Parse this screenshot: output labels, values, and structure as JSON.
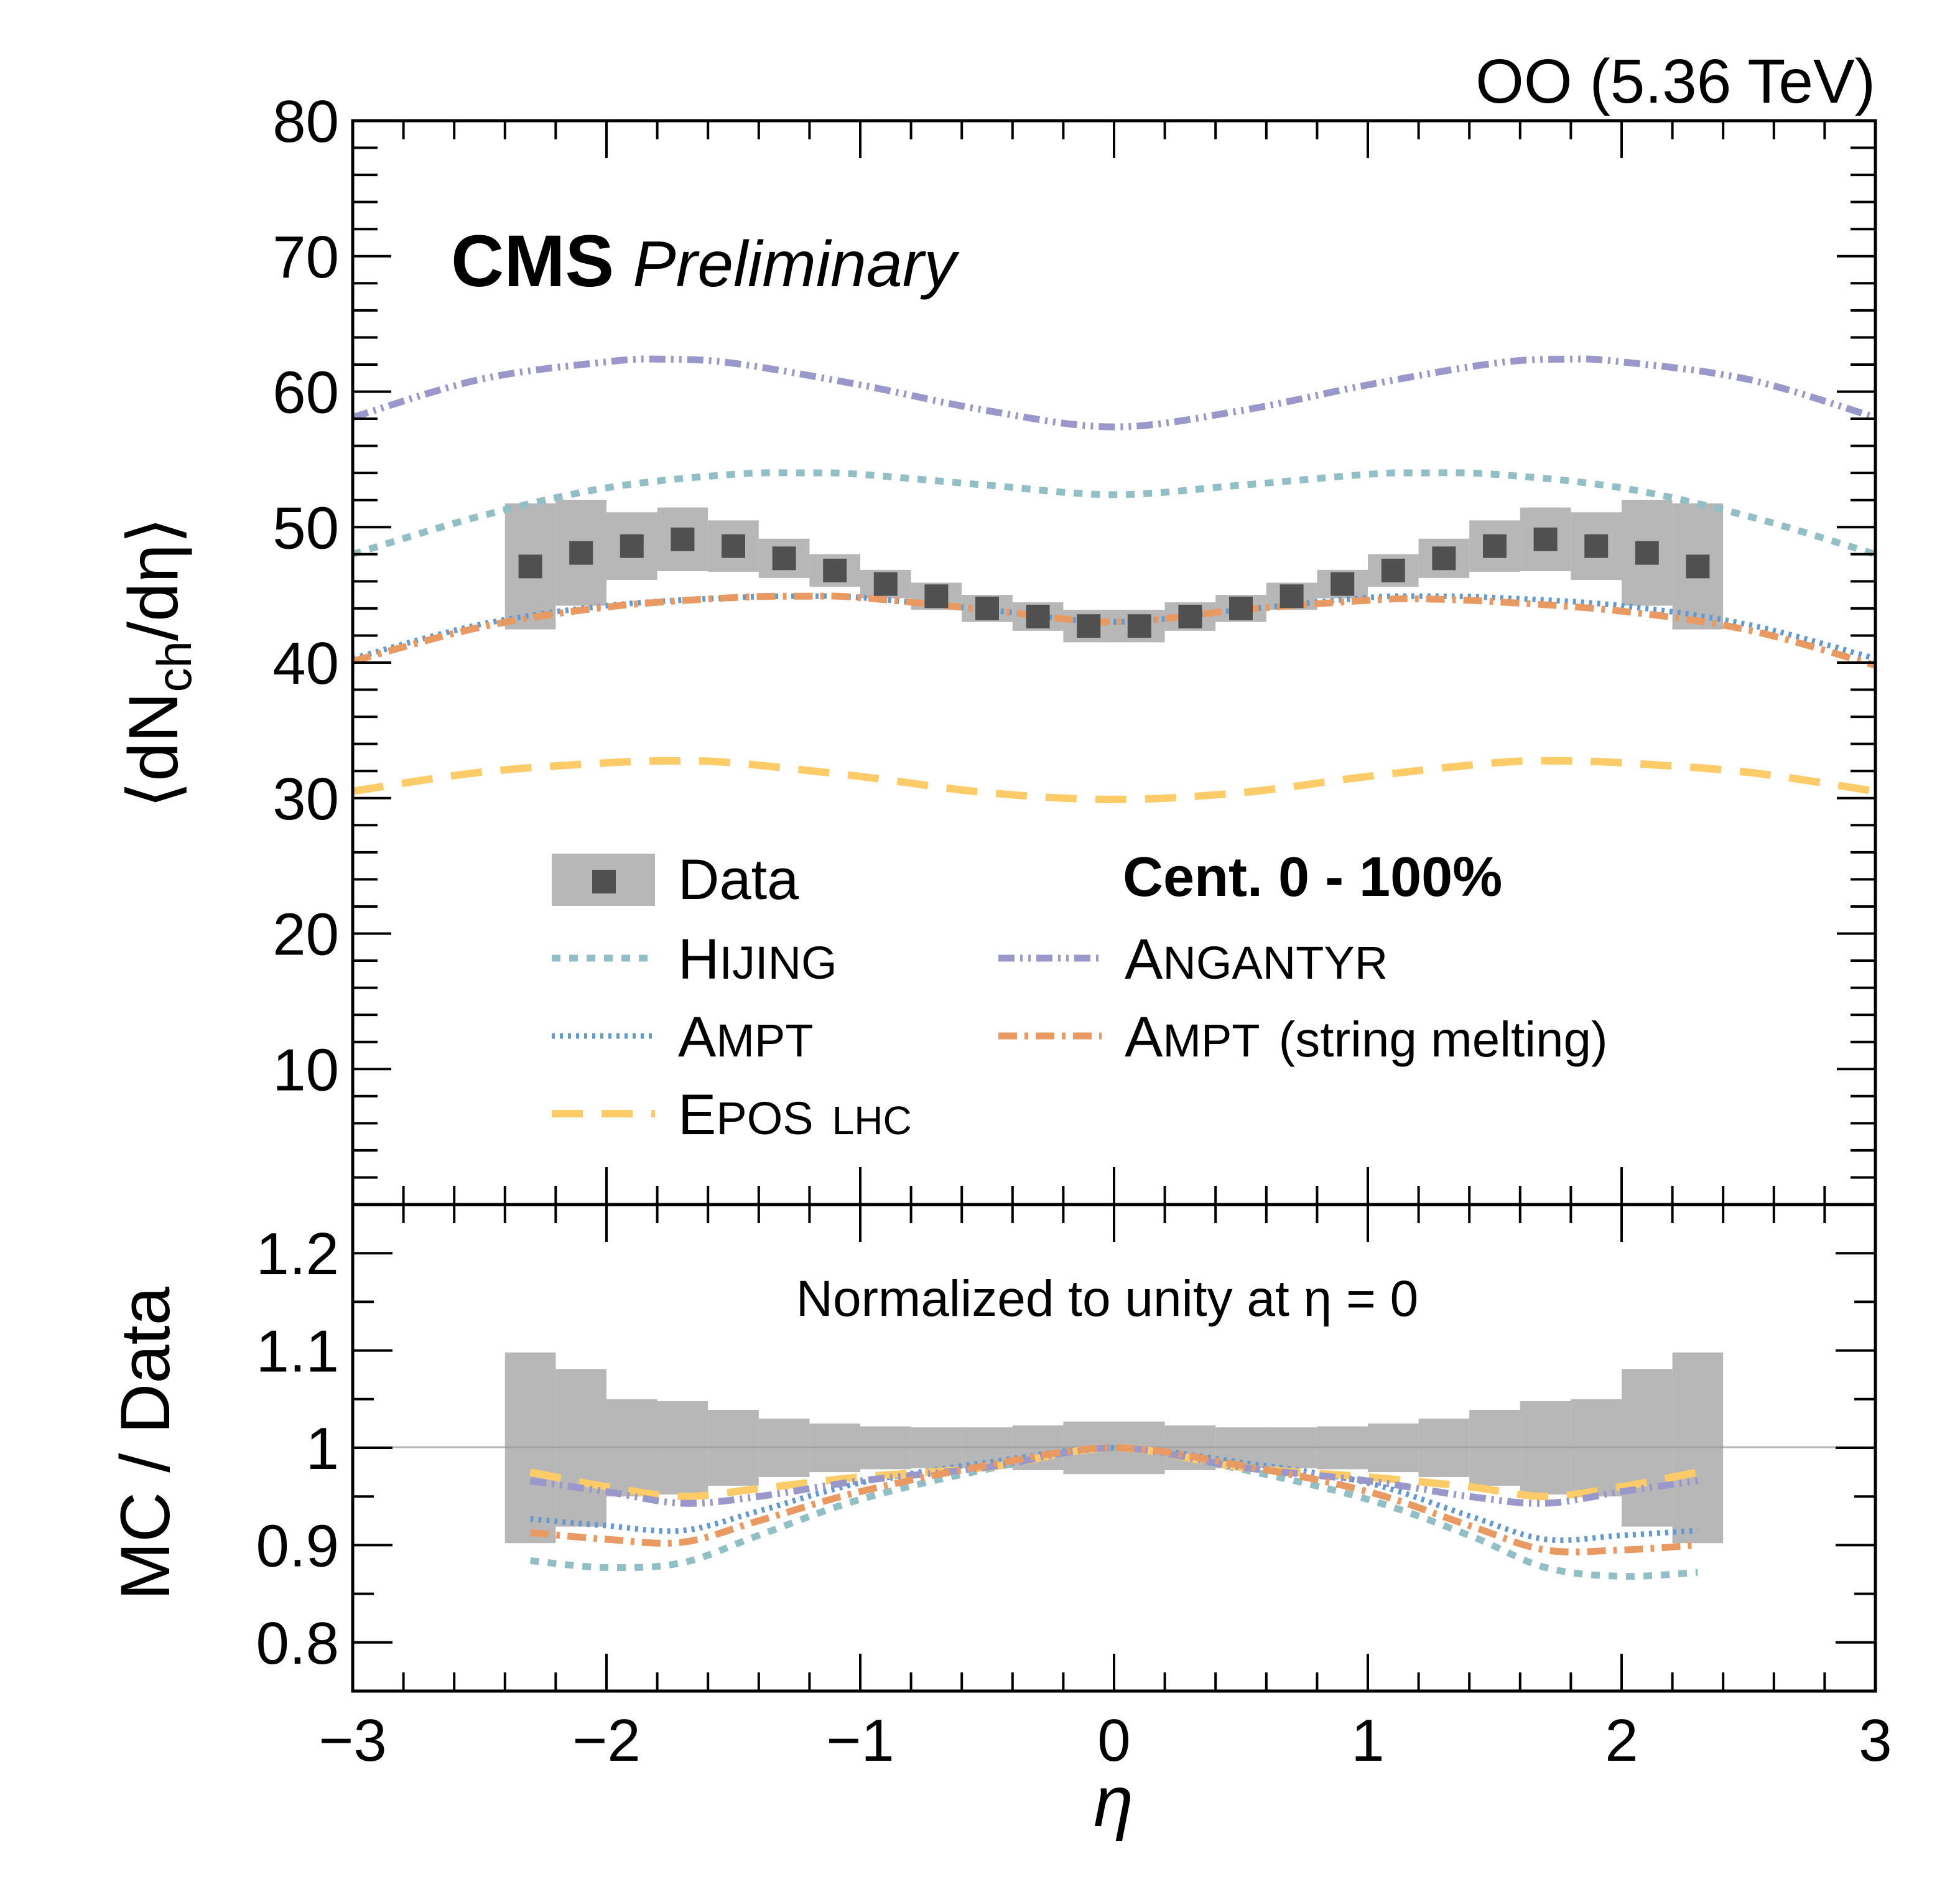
{
  "chart_data": {
    "type": "line",
    "title": "",
    "energy_label": "OO (5.36 TeV)",
    "experiment_label": "CMS",
    "status_label": "Preliminary",
    "centrality_label": "Cent. 0 - 100%",
    "normalization_note": "Normalized to unity at η = 0",
    "xlabel": "η",
    "ylabel_top": "⟨dN_ch/dη⟩",
    "ylabel_top_parts": {
      "pre": "⟨dN",
      "sub": "ch",
      "post": "/dη⟩"
    },
    "ylabel_bottom": "MC / Data",
    "xlim": [
      -3,
      3
    ],
    "ylim_top": [
      0,
      80
    ],
    "ylim_bottom": [
      0.75,
      1.25
    ],
    "xticks": [
      -3,
      -2,
      -1,
      0,
      1,
      2,
      3
    ],
    "xtick_labels": [
      "−3",
      "−2",
      "−1",
      "0",
      "1",
      "2",
      "3"
    ],
    "yticks_top": [
      10,
      20,
      30,
      40,
      50,
      60,
      70,
      80
    ],
    "ytick_labels_top": [
      "10",
      "20",
      "30",
      "40",
      "50",
      "60",
      "70",
      "80"
    ],
    "yticks_bottom": [
      0.8,
      0.9,
      1.0,
      1.1,
      1.2
    ],
    "ytick_labels_bottom": [
      "0.8",
      "0.9",
      "1",
      "1.1",
      "1.2"
    ],
    "grid": false,
    "legend_position": "center",
    "data": {
      "name": "Data",
      "bin_width": 0.2,
      "x": [
        -2.3,
        -2.1,
        -1.9,
        -1.7,
        -1.5,
        -1.3,
        -1.1,
        -0.9,
        -0.7,
        -0.5,
        -0.3,
        -0.1,
        0.1,
        0.3,
        0.5,
        0.7,
        0.9,
        1.1,
        1.3,
        1.5,
        1.7,
        1.9,
        2.1,
        2.3
      ],
      "y": [
        47.1,
        48.1,
        48.6,
        49.1,
        48.6,
        47.7,
        46.8,
        45.8,
        44.9,
        44.0,
        43.4,
        42.7,
        42.7,
        43.4,
        44.0,
        44.9,
        45.8,
        46.8,
        47.7,
        48.6,
        49.1,
        48.6,
        48.1,
        47.1
      ],
      "sys": [
        4.65,
        3.9,
        2.5,
        2.35,
        1.9,
        1.45,
        1.2,
        1.05,
        1.0,
        1.0,
        1.05,
        1.2,
        1.2,
        1.05,
        1.0,
        1.0,
        1.05,
        1.2,
        1.45,
        1.9,
        2.35,
        2.5,
        3.9,
        4.65
      ],
      "ratio_sys": [
        0.098,
        0.081,
        0.05,
        0.048,
        0.039,
        0.03,
        0.025,
        0.022,
        0.021,
        0.021,
        0.023,
        0.027,
        0.027,
        0.023,
        0.021,
        0.021,
        0.022,
        0.025,
        0.03,
        0.039,
        0.048,
        0.05,
        0.081,
        0.098
      ]
    },
    "series": [
      {
        "name": "HIJING",
        "label_main": "H",
        "label_rest": "IJING",
        "suffix": "",
        "color": "#92bfc6",
        "style": "dotted-thick",
        "x": [
          -3,
          -2.5,
          -2,
          -1.5,
          -1.2,
          -1,
          -0.5,
          0,
          0.5,
          1,
          1.2,
          1.5,
          2,
          2.5,
          3
        ],
        "y": [
          48.0,
          50.8,
          52.9,
          53.9,
          54.0,
          53.9,
          53.1,
          52.4,
          53.1,
          53.9,
          54.0,
          53.9,
          52.9,
          50.8,
          48.0
        ],
        "ratio_x": [
          -2.3,
          -2.0,
          -1.7,
          -1.4,
          -1.0,
          -0.5,
          0,
          0.5,
          1.0,
          1.4,
          1.7,
          2.0,
          2.3
        ],
        "ratio": [
          0.884,
          0.877,
          0.882,
          0.91,
          0.947,
          0.978,
          1.0,
          0.978,
          0.947,
          0.91,
          0.877,
          0.868,
          0.872
        ]
      },
      {
        "name": "AMPT",
        "label_main": "A",
        "label_rest": "MPT",
        "suffix": "",
        "color": "#6699cc",
        "style": "dotted-fine",
        "x": [
          -3,
          -2.5,
          -2,
          -1.5,
          -1.2,
          -1,
          -0.5,
          0,
          0.5,
          1,
          1.2,
          1.5,
          2,
          2.5,
          3
        ],
        "y": [
          40.3,
          42.8,
          44.2,
          44.8,
          44.9,
          44.8,
          43.9,
          43.0,
          43.9,
          44.8,
          44.9,
          44.8,
          44.2,
          42.8,
          40.3
        ],
        "ratio_x": [
          -2.3,
          -2.0,
          -1.7,
          -1.4,
          -1.0,
          -0.5,
          0,
          0.5,
          1.0,
          1.4,
          1.7,
          2.0,
          2.3
        ],
        "ratio": [
          0.927,
          0.92,
          0.915,
          0.935,
          0.964,
          0.985,
          1.0,
          0.985,
          0.964,
          0.93,
          0.906,
          0.91,
          0.915
        ]
      },
      {
        "name": "EPOS LHC",
        "label_main": "E",
        "label_rest": "POS",
        "suffix": "LHC",
        "color": "#fdcb68",
        "style": "dashed",
        "x": [
          -3,
          -2.5,
          -2,
          -1.74,
          -1.5,
          -1,
          -0.5,
          0,
          0.5,
          1,
          1.5,
          1.74,
          2,
          2.5,
          3
        ],
        "y": [
          30.5,
          31.9,
          32.6,
          32.75,
          32.6,
          31.6,
          30.4,
          29.9,
          30.4,
          31.6,
          32.6,
          32.75,
          32.6,
          31.9,
          30.5
        ],
        "ratio_x": [
          -2.3,
          -2.0,
          -1.7,
          -1.4,
          -1.0,
          -0.5,
          0,
          0.5,
          1.0,
          1.4,
          1.7,
          2.0,
          2.3
        ],
        "ratio": [
          0.975,
          0.96,
          0.95,
          0.958,
          0.97,
          0.98,
          1.0,
          0.98,
          0.97,
          0.96,
          0.95,
          0.96,
          0.975
        ]
      },
      {
        "name": "ANGANTYR",
        "label_main": "A",
        "label_rest": "NGANTYR",
        "suffix": "",
        "color": "#9a98ca",
        "style": "dash-dot-dot",
        "x": [
          -3,
          -2.5,
          -2,
          -1.78,
          -1.5,
          -1,
          -0.5,
          0,
          0.5,
          1,
          1.5,
          1.78,
          2,
          2.5,
          3
        ],
        "y": [
          58.1,
          60.9,
          62.2,
          62.4,
          62.1,
          60.5,
          58.6,
          57.4,
          58.6,
          60.5,
          62.1,
          62.4,
          62.2,
          60.9,
          58.1
        ],
        "ratio_x": [
          -2.3,
          -2.0,
          -1.7,
          -1.4,
          -1.0,
          -0.5,
          0,
          0.5,
          1.0,
          1.4,
          1.7,
          2.0,
          2.3
        ],
        "ratio": [
          0.966,
          0.955,
          0.943,
          0.95,
          0.966,
          0.98,
          1.0,
          0.98,
          0.966,
          0.95,
          0.943,
          0.955,
          0.966
        ]
      },
      {
        "name": "AMPT (string melting)",
        "label_main": "A",
        "label_rest": "MPT",
        "suffix": "(string melting)",
        "color": "#e99a62",
        "style": "dash-dot",
        "x": [
          -3,
          -2.5,
          -2,
          -1.5,
          -1.2,
          -1,
          -0.5,
          0,
          0.5,
          1,
          1.2,
          1.5,
          2,
          2.5,
          3
        ],
        "y": [
          40.1,
          42.6,
          44.1,
          44.8,
          44.9,
          44.8,
          43.9,
          43.0,
          43.9,
          44.6,
          44.7,
          44.5,
          43.8,
          42.4,
          39.8
        ],
        "ratio_x": [
          -2.3,
          -2.0,
          -1.7,
          -1.4,
          -1.0,
          -0.5,
          0,
          0.5,
          1.0,
          1.4,
          1.7,
          2.0,
          2.3
        ],
        "ratio": [
          0.913,
          0.906,
          0.903,
          0.925,
          0.955,
          0.982,
          1.0,
          0.982,
          0.955,
          0.92,
          0.895,
          0.895,
          0.9
        ]
      }
    ]
  }
}
